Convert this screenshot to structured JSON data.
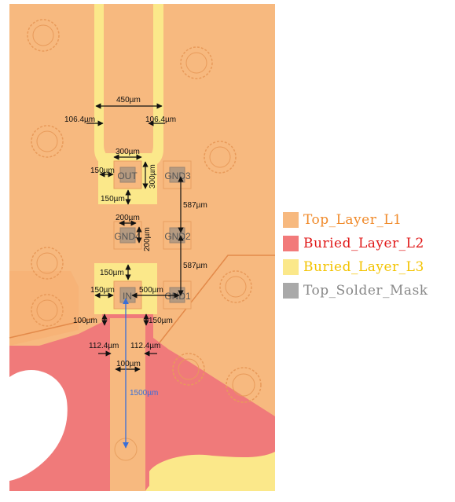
{
  "pads": {
    "out": "OUT",
    "gnd3": "GND3",
    "gnd4": "GND4",
    "gnd2": "GND2",
    "in": "IN",
    "gnd1": "GND1"
  },
  "dimensions": {
    "trace_width_450": "450µm",
    "gap_left_106": "106.4µm",
    "gap_right_106": "106.4µm",
    "pad_width_300": "300µm",
    "pad_height_300": "300µm",
    "out_margin_150": "150µm",
    "out_bottom_150": "150µm",
    "pitch_587_top": "587µm",
    "gnd4_width_200": "200µm",
    "gnd4_height_200": "200µm",
    "pitch_587_bottom": "587µm",
    "in_top_150": "150µm",
    "in_left_150": "150µm",
    "in_to_gnd1_500": "500µm",
    "left_100": "100µm",
    "right_150": "150µm",
    "gap_left_112": "112.4µm",
    "gap_right_112": "112.4µm",
    "feed_width_100": "100µm",
    "feed_length_1500": "1500µm"
  },
  "legend": [
    {
      "label": "Top_Layer_L1",
      "color": "#f7b97f",
      "text_color": "#f08a2a"
    },
    {
      "label": "Buried_Layer_L2",
      "color": "#f27a7a",
      "text_color": "#e01818"
    },
    {
      "label": "Buried_Layer_L3",
      "color": "#fbe88a",
      "text_color": "#f3c300"
    },
    {
      "label": "Top_Solder_Mask",
      "color": "#a9a9a9",
      "text_color": "#888888"
    }
  ]
}
